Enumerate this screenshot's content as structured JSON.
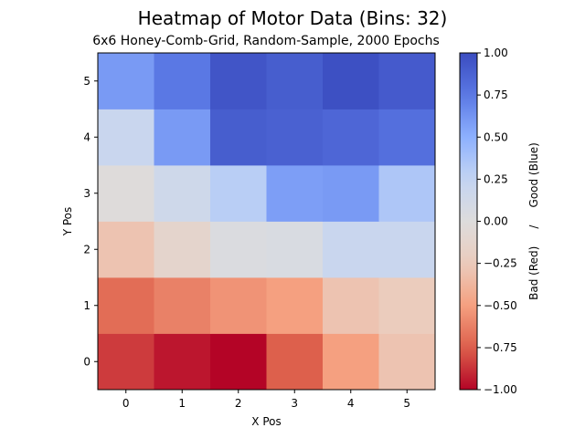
{
  "chart_data": {
    "type": "heatmap",
    "title": "Heatmap of Motor Data (Bins: 32)",
    "subtitle": "6x6 Honey-Comb-Grid, Random-Sample, 2000 Epochs",
    "xlabel": "X Pos",
    "ylabel": "Y Pos",
    "colorbar_label": "Bad (Red)     /     Good (Blue)",
    "x": [
      0,
      1,
      2,
      3,
      4,
      5
    ],
    "y": [
      0,
      1,
      2,
      3,
      4,
      5
    ],
    "xlim": [
      -0.5,
      5.5
    ],
    "ylim": [
      -0.5,
      5.5
    ],
    "vlim": [
      -1.0,
      1.0
    ],
    "colormap": "coolwarm_r",
    "colorbar_ticks": [
      "1.00",
      "0.75",
      "0.50",
      "0.25",
      "0.00",
      "−0.25",
      "−0.50",
      "−0.75",
      "−1.00"
    ],
    "colorbar_tick_values": [
      1.0,
      0.75,
      0.5,
      0.25,
      0.0,
      -0.25,
      -0.5,
      -0.75,
      -1.0
    ],
    "values": [
      [
        -0.85,
        -0.95,
        -1.0,
        -0.75,
        -0.5,
        -0.3
      ],
      [
        -0.7,
        -0.62,
        -0.55,
        -0.5,
        -0.3,
        -0.25
      ],
      [
        -0.3,
        -0.13,
        0.03,
        0.05,
        0.2,
        0.2
      ],
      [
        -0.02,
        0.15,
        0.3,
        0.58,
        0.6,
        0.35
      ],
      [
        0.2,
        0.6,
        0.9,
        0.88,
        0.85,
        0.8
      ],
      [
        0.6,
        0.75,
        0.95,
        0.9,
        0.98,
        0.92
      ]
    ]
  }
}
